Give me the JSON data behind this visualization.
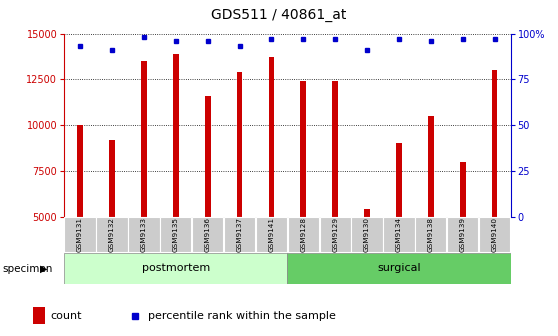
{
  "title": "GDS511 / 40861_at",
  "categories": [
    "GSM9131",
    "GSM9132",
    "GSM9133",
    "GSM9135",
    "GSM9136",
    "GSM9137",
    "GSM9141",
    "GSM9128",
    "GSM9129",
    "GSM9130",
    "GSM9134",
    "GSM9138",
    "GSM9139",
    "GSM9140"
  ],
  "counts": [
    10000,
    9200,
    13500,
    13900,
    11600,
    12900,
    13700,
    12400,
    12400,
    5400,
    9000,
    10500,
    8000,
    13000
  ],
  "percentiles": [
    93,
    91,
    98,
    96,
    96,
    93,
    97,
    97,
    97,
    91,
    97,
    96,
    97,
    97
  ],
  "bar_color": "#cc0000",
  "dot_color": "#0000cc",
  "ylim_left": [
    5000,
    15000
  ],
  "ylim_right": [
    0,
    100
  ],
  "yticks_left": [
    5000,
    7500,
    10000,
    12500,
    15000
  ],
  "yticks_right": [
    0,
    25,
    50,
    75,
    100
  ],
  "postmortem_count": 7,
  "surgical_count": 7,
  "postmortem_color": "#ccffcc",
  "surgical_color": "#66cc66",
  "tick_bg_color": "#cccccc",
  "legend_count_color": "#cc0000",
  "legend_dot_color": "#0000cc",
  "right_axis_color": "#0000cc",
  "left_axis_color": "#cc0000",
  "grid_color": "#000000",
  "figsize": [
    5.58,
    3.36
  ],
  "dpi": 100
}
